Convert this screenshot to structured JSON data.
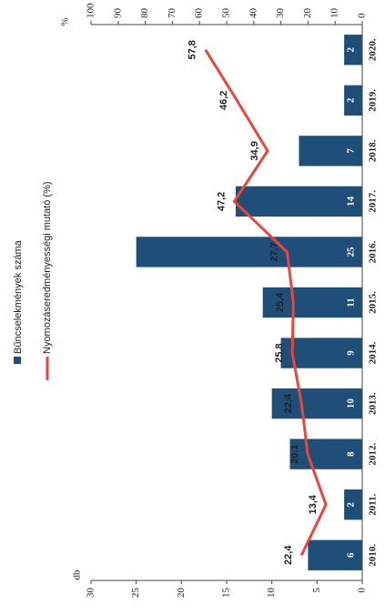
{
  "chart_data": {
    "type": "bar_line",
    "categories": [
      "2010.",
      "2011.",
      "2012.",
      "2013.",
      "2014.",
      "2015.",
      "2016.",
      "2017.",
      "2018.",
      "2019.",
      "2020."
    ],
    "series": [
      {
        "name": "Bűncselekmények száma",
        "type": "bar",
        "color": "#1f4e79",
        "values": [
          6,
          2,
          8,
          10,
          9,
          11,
          25,
          14,
          7,
          2,
          2
        ]
      },
      {
        "name": "Nyomozáseredményességi mutató (%)",
        "type": "line",
        "axis": "y2",
        "color": "#e8473d",
        "values": [
          22.4,
          13.4,
          20.1,
          22.4,
          25.8,
          25.4,
          27.7,
          47.2,
          34.9,
          46.2,
          57.8
        ],
        "value_labels": [
          "22,4",
          "13,4",
          "20.1",
          "22,4",
          "25,8",
          "25,4",
          "27,7",
          "47,2",
          "34,9",
          "46,2",
          "57,8"
        ]
      }
    ],
    "ylabel": "db",
    "y2label": "%",
    "ylim": [
      0,
      30
    ],
    "yticks": [
      0,
      5,
      10,
      15,
      20,
      25,
      30
    ],
    "y2lim": [
      0,
      100
    ],
    "y2ticks": [
      0,
      10,
      20,
      30,
      40,
      50,
      60,
      70,
      80,
      90,
      100
    ],
    "rotation": -90
  }
}
